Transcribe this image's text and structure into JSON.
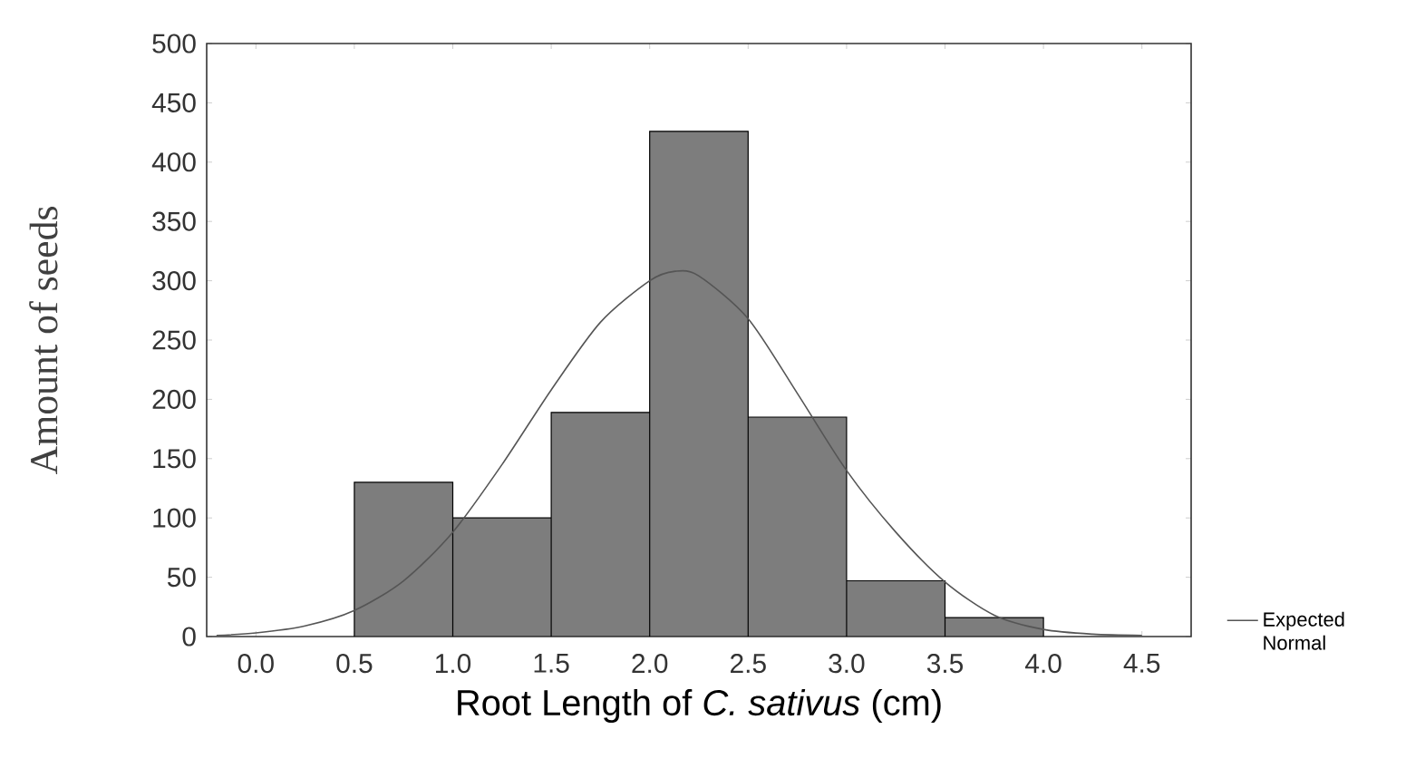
{
  "chart_data": {
    "type": "histogram",
    "xlabel": "Root Length of *C. sativus* (cm)",
    "ylabel": "Amount of seeds",
    "bins": [
      0.5,
      1.0,
      1.5,
      2.0,
      2.5,
      3.0,
      3.5,
      4.0
    ],
    "values": [
      130,
      100,
      189,
      426,
      185,
      47,
      16
    ],
    "color": "#7d7d7d",
    "series": [
      {
        "type": "line",
        "name": "Expected Normal",
        "color": "#555555",
        "x": [
          -0.2,
          0.0,
          0.25,
          0.5,
          0.75,
          1.0,
          1.25,
          1.5,
          1.75,
          2.0,
          2.13,
          2.25,
          2.5,
          2.75,
          3.0,
          3.25,
          3.5,
          3.75,
          4.0,
          4.25,
          4.5
        ],
        "values": [
          1,
          3,
          9,
          22,
          47,
          88,
          145,
          208,
          265,
          300,
          308,
          304,
          268,
          205,
          140,
          88,
          46,
          18,
          6,
          2,
          1
        ]
      }
    ],
    "xlim": [
      -0.25,
      4.75
    ],
    "ylim": [
      0,
      500
    ],
    "xticks": [
      {
        "value": 0,
        "label": "0.0"
      },
      0.5,
      {
        "value": 1,
        "label": "1.0"
      },
      1.5,
      {
        "value": 2,
        "label": "2.0"
      },
      2.5,
      {
        "value": 3,
        "label": "3.0"
      },
      3.5,
      {
        "value": 4,
        "label": "4.0"
      },
      4.5
    ],
    "yticks": [
      0,
      50,
      100,
      150,
      200,
      250,
      300,
      350,
      400,
      450,
      500
    ],
    "legend": "right"
  }
}
